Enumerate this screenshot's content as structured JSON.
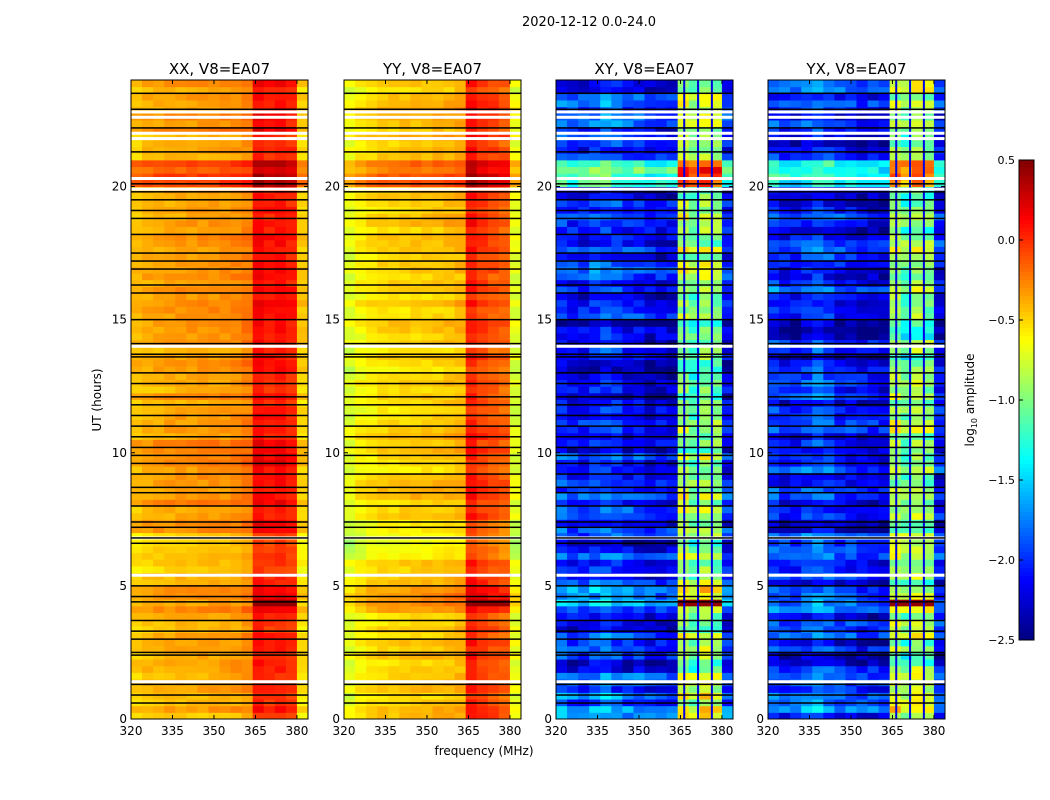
{
  "chart_data": {
    "type": "heatmap",
    "suptitle": "2020-12-12 0.0-24.0",
    "xlabel": "frequency (MHz)",
    "ylabel": "UT (hours)",
    "xlim": [
      320,
      384
    ],
    "ylim": [
      0,
      24
    ],
    "xticks": [
      "320",
      "335",
      "350",
      "365",
      "380"
    ],
    "xtick_values": [
      320,
      335,
      350,
      365,
      380
    ],
    "yticks": [
      "0",
      "5",
      "10",
      "15",
      "20"
    ],
    "ytick_values": [
      0,
      5,
      10,
      15,
      20
    ],
    "freq_bins_mhz": [
      320,
      324,
      328,
      332,
      336,
      340,
      344,
      348,
      352,
      356,
      360,
      364,
      368,
      372,
      376,
      380
    ],
    "flagged_black_hours": [
      0.6,
      0.9,
      1.3,
      2.4,
      2.5,
      3.0,
      3.3,
      3.7,
      4.4,
      4.6,
      5.0,
      6.6,
      6.8,
      7.2,
      7.4,
      8.0,
      8.5,
      8.7,
      9.2,
      9.6,
      9.9,
      10.2,
      10.6,
      11.0,
      11.4,
      11.8,
      12.1,
      12.6,
      13.0,
      13.6,
      13.7,
      14.1,
      15.0,
      16.0,
      16.3,
      16.9,
      17.2,
      17.5,
      18.2,
      18.8,
      19.1,
      19.5,
      19.8,
      20.1,
      21.3,
      22.2,
      22.9,
      23.5
    ],
    "gap_white_hours": [
      1.4,
      5.4,
      6.8,
      14.0,
      19.9,
      20.3,
      21.8,
      22.0,
      22.6,
      22.8
    ],
    "panels": [
      {
        "title": "XX, V8=EA07",
        "freq_profile": [
          -0.45,
          -0.4,
          -0.38,
          -0.36,
          -0.35,
          -0.35,
          -0.34,
          -0.33,
          -0.32,
          -0.3,
          -0.25,
          0.1,
          0.05,
          0.08,
          0.02,
          -0.5
        ],
        "hour_offsets": [
          -0.05,
          -0.05,
          -0.05,
          -0.05,
          0.05,
          -0.1,
          -0.15,
          0,
          0.05,
          0.05,
          0.05,
          0,
          0,
          0,
          0.05,
          0.05,
          0,
          0,
          0,
          0,
          0.25,
          0,
          0.05,
          0
        ]
      },
      {
        "title": "YY, V8=EA07",
        "freq_profile": [
          -0.7,
          -0.6,
          -0.55,
          -0.5,
          -0.5,
          -0.48,
          -0.47,
          -0.46,
          -0.45,
          -0.43,
          -0.4,
          0.05,
          -0.05,
          -0.1,
          -0.15,
          -0.7
        ],
        "hour_offsets": [
          0,
          0,
          0,
          0,
          0.15,
          0,
          -0.2,
          -0.05,
          0,
          -0.05,
          0,
          -0.05,
          -0.05,
          -0.05,
          0,
          0,
          0,
          0,
          0,
          0,
          0.3,
          0.05,
          0.05,
          0
        ]
      },
      {
        "title": "XY, V8=EA07",
        "freq_profile": [
          -2.0,
          -2.1,
          -2.1,
          -2.0,
          -1.9,
          -2.0,
          -2.1,
          -2.1,
          -2.2,
          -2.2,
          -2.2,
          -0.9,
          -1.1,
          -0.9,
          -1.0,
          -2.1
        ],
        "hour_offsets": [
          0.2,
          0.1,
          0,
          0,
          0.3,
          0,
          0,
          0,
          0,
          0,
          0,
          0,
          0,
          -0.1,
          -0.1,
          0,
          0.1,
          0,
          0,
          0,
          0.9,
          0,
          0.1,
          0.1
        ]
      },
      {
        "title": "YX, V8=EA07",
        "freq_profile": [
          -2.0,
          -2.1,
          -2.1,
          -2.0,
          -1.9,
          -2.0,
          -2.1,
          -2.1,
          -2.2,
          -2.2,
          -2.2,
          -0.9,
          -1.1,
          -0.9,
          -1.0,
          -2.1
        ],
        "hour_offsets": [
          0.2,
          0.1,
          0,
          0,
          0.3,
          0,
          0,
          0,
          0,
          0,
          0,
          0,
          0,
          -0.1,
          -0.1,
          0,
          0.1,
          0,
          0,
          0,
          0.9,
          0,
          0.1,
          0.1
        ]
      }
    ],
    "colorbar": {
      "label_prefix": "log",
      "label_sub": "10",
      "label_suffix": " amplitude",
      "range": [
        -2.5,
        0.5
      ],
      "ticks": [
        "0.5",
        "0.0",
        "−0.5",
        "−1.0",
        "−1.5",
        "−2.0",
        "−2.5"
      ],
      "tick_values": [
        0.5,
        0,
        -0.5,
        -1,
        -1.5,
        -2,
        -2.5
      ],
      "colormap": "jet"
    }
  }
}
